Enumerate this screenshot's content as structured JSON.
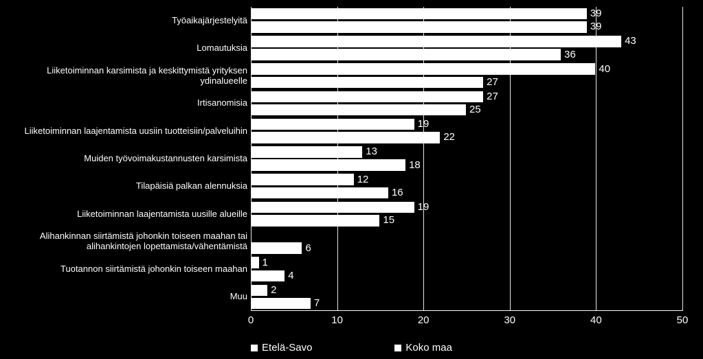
{
  "chart": {
    "type": "horizontal_grouped_bar",
    "background_color": "#000000",
    "bar_color": "#ffffff",
    "text_color": "#ffffff",
    "gridline_color": "#ffffff",
    "label_fontsize": 13,
    "value_fontsize": 15,
    "tick_fontsize": 15,
    "legend_fontsize": 15,
    "x_axis": {
      "min": 0,
      "max": 50,
      "step": 10,
      "ticks": [
        0,
        10,
        20,
        30,
        40,
        50
      ]
    },
    "series": [
      {
        "key": "etela_savo",
        "label": "Etelä-Savo",
        "color": "#ffffff"
      },
      {
        "key": "koko_maa",
        "label": "Koko maa",
        "color": "#ffffff"
      }
    ],
    "categories": [
      {
        "label": "Työaikajärjestelyitä",
        "values": {
          "etela_savo": 39,
          "koko_maa": 39
        }
      },
      {
        "label": "Lomautuksia",
        "values": {
          "etela_savo": 43,
          "koko_maa": 36
        }
      },
      {
        "label": "Liiketoiminnan karsimista ja keskittymistä yrityksen ydinalueelle",
        "values": {
          "etela_savo": 40,
          "koko_maa": 27
        }
      },
      {
        "label": "Irtisanomisia",
        "values": {
          "etela_savo": 27,
          "koko_maa": 25
        }
      },
      {
        "label": "Liiketoiminnan laajentamista uusiin tuotteisiin/palveluihin",
        "values": {
          "etela_savo": 19,
          "koko_maa": 22
        }
      },
      {
        "label": "Muiden työvoimakustannusten karsimista",
        "values": {
          "etela_savo": 13,
          "koko_maa": 18
        }
      },
      {
        "label": "Tilapäisiä palkan alennuksia",
        "values": {
          "etela_savo": 12,
          "koko_maa": 16
        }
      },
      {
        "label": "Liiketoiminnan laajentamista uusille alueille",
        "values": {
          "etela_savo": 19,
          "koko_maa": 15
        }
      },
      {
        "label": "Alihankinnan siirtämistä johonkin toiseen maahan tai alihankintojen lopettamista/vähentämistä",
        "values": {
          "etela_savo": 0,
          "koko_maa": 6
        }
      },
      {
        "label": "Tuotannon siirtämistä johonkin toiseen maahan",
        "values": {
          "etela_savo": 1,
          "koko_maa": 4
        }
      },
      {
        "label": "Muu",
        "values": {
          "etela_savo": 2,
          "koko_maa": 7
        }
      }
    ]
  }
}
